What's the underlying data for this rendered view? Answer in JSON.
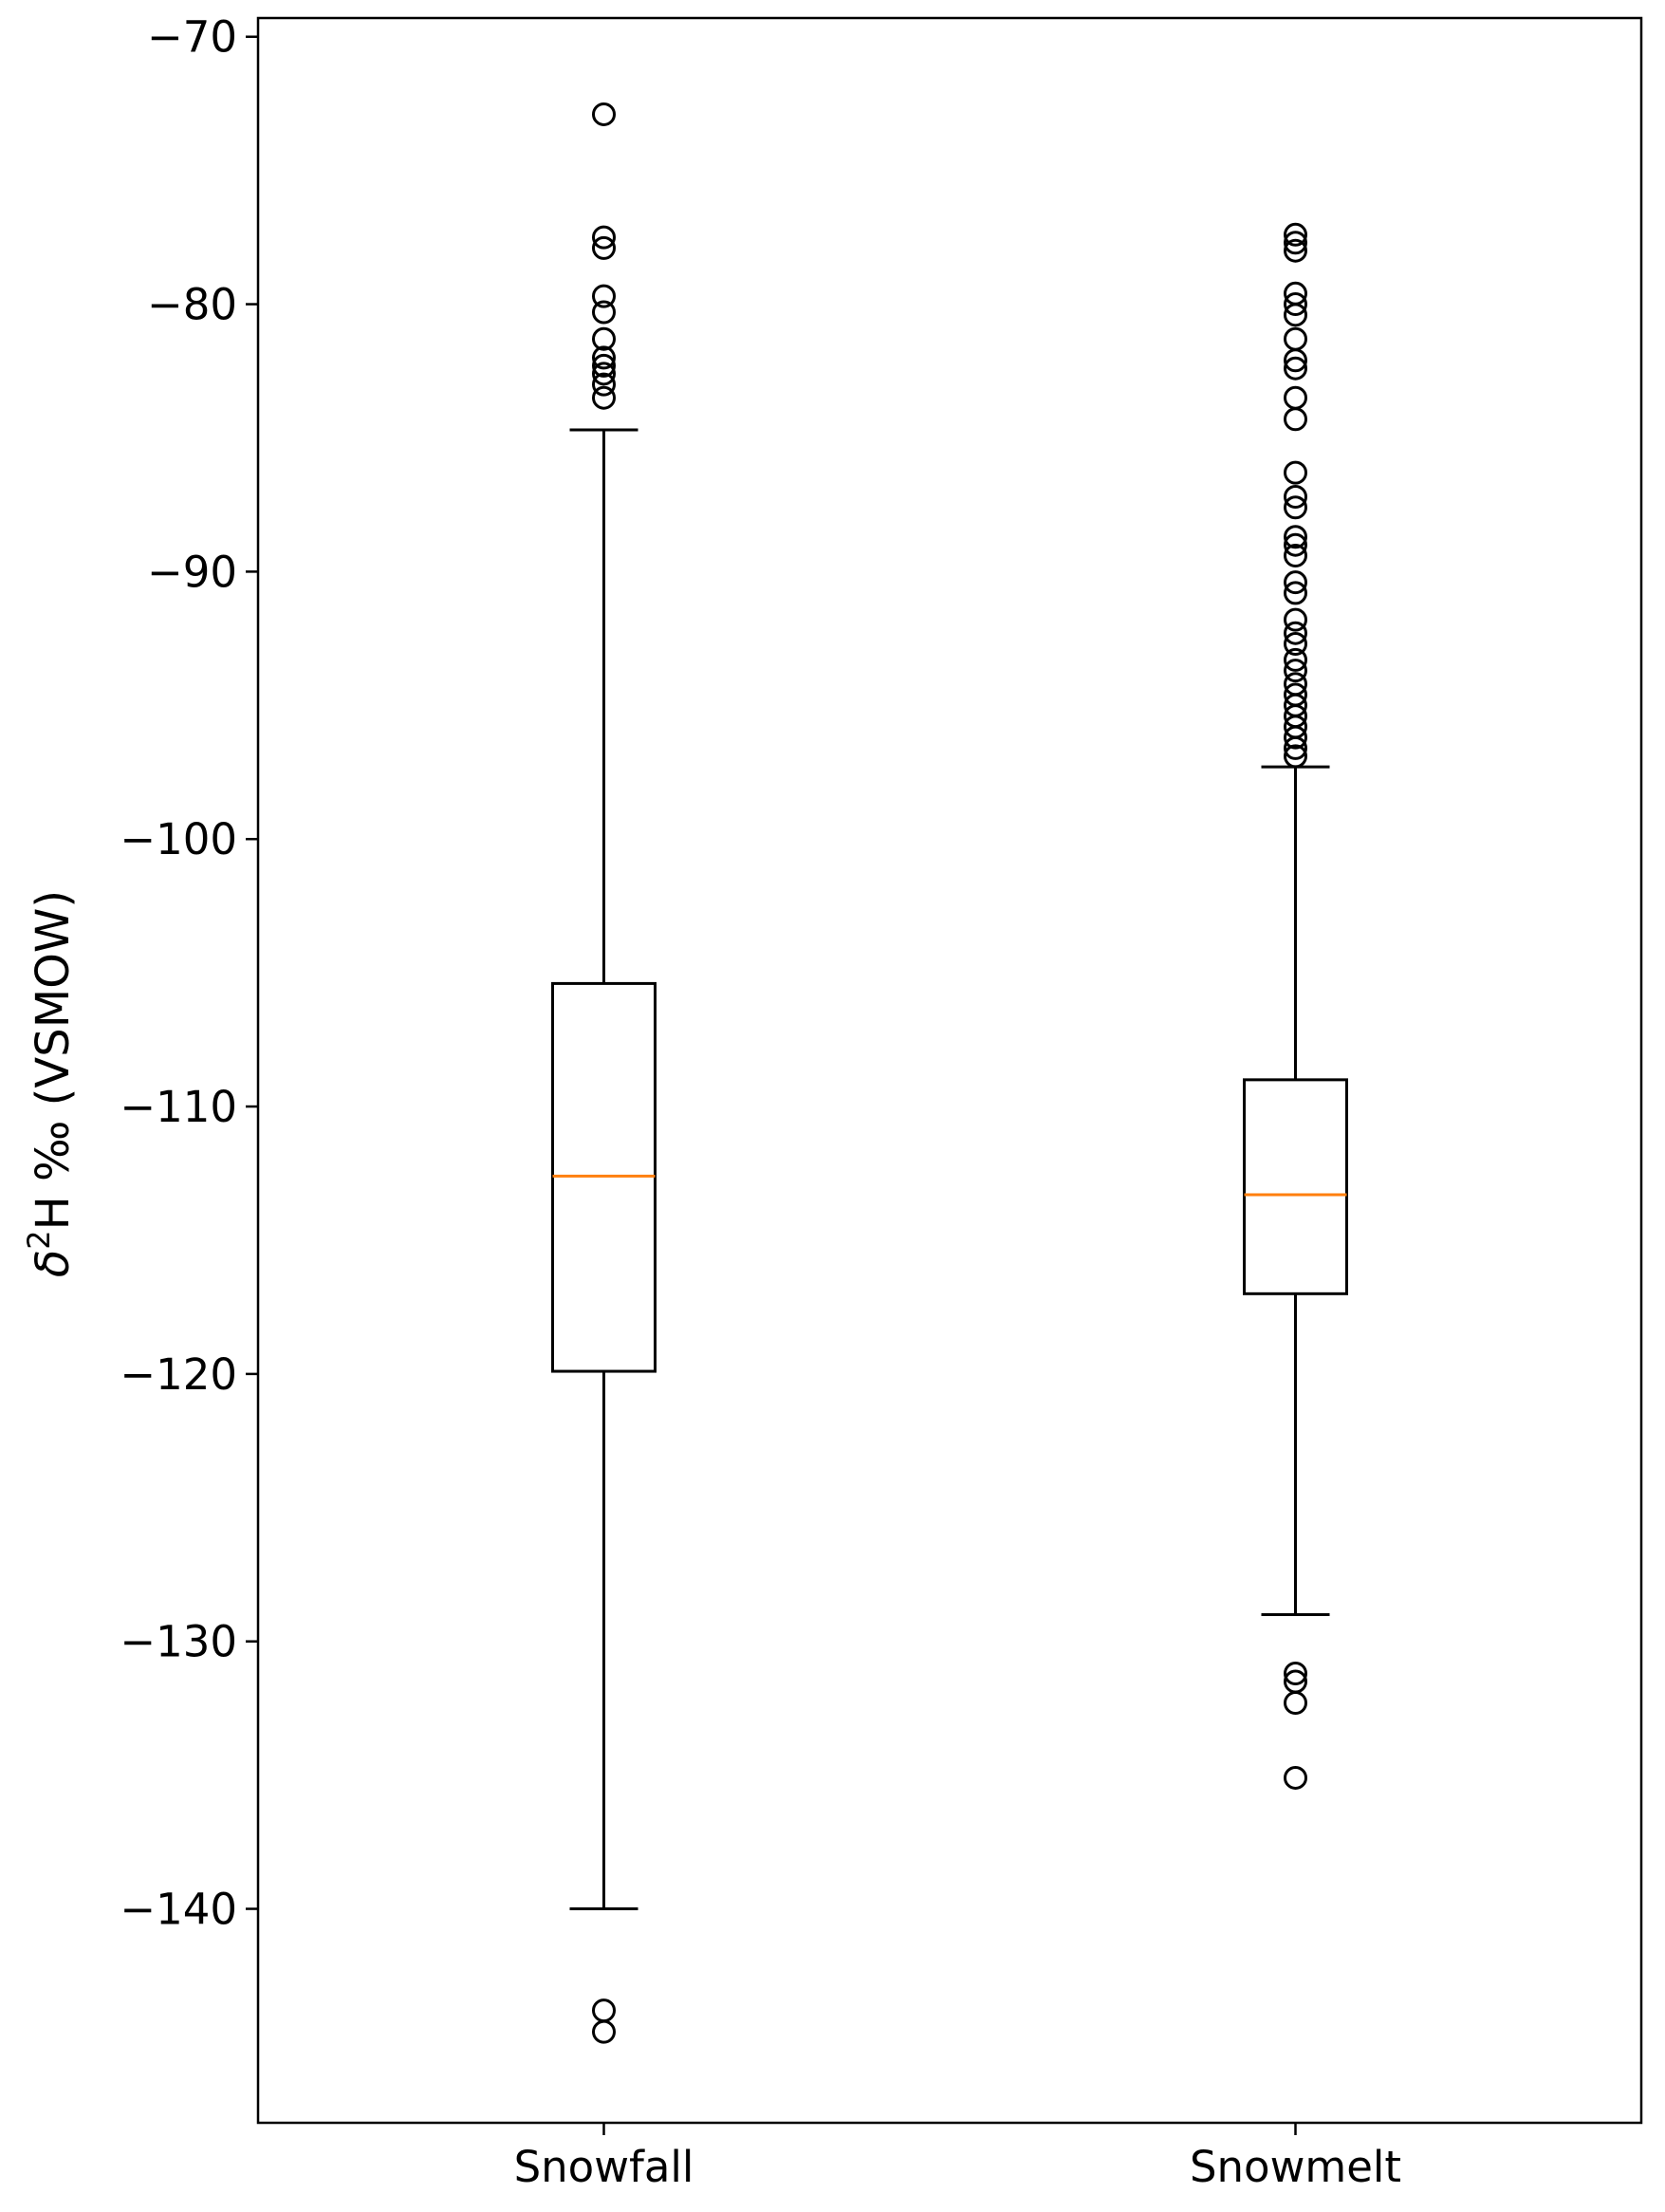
{
  "chart_data": {
    "type": "box",
    "title": "",
    "xlabel": "",
    "ylabel": {
      "delta": "δ",
      "superscript": "2",
      "rest": "H ‰ (VSMOW)"
    },
    "ylim": [
      -148,
      -69.3
    ],
    "yticks": [
      -70,
      -80,
      -90,
      -100,
      -110,
      -120,
      -130,
      -140
    ],
    "ytick_labels": [
      "−70",
      "−80",
      "−90",
      "−100",
      "−110",
      "−120",
      "−130",
      "−140"
    ],
    "grid": false,
    "categories": [
      "Snowfall",
      "Snowmelt"
    ],
    "boxes": [
      {
        "name": "Snowfall",
        "whisker_high": -84.7,
        "q3": -105.4,
        "median": -112.6,
        "q1": -119.9,
        "whisker_low": -140,
        "outliers": [
          -72.9,
          -77.5,
          -77.9,
          -79.7,
          -80.3,
          -81.3,
          -82.0,
          -82.3,
          -82.6,
          -83.0,
          -83.5,
          -143.8,
          -144.6
        ]
      },
      {
        "name": "Snowmelt",
        "whisker_high": -97.3,
        "q3": -109,
        "median": -113.3,
        "q1": -117,
        "whisker_low": -129,
        "outliers": [
          -77.4,
          -77.7,
          -78.0,
          -79.6,
          -80.0,
          -80.4,
          -81.3,
          -82.1,
          -82.4,
          -83.5,
          -84.3,
          -86.3,
          -87.2,
          -87.6,
          -88.7,
          -89.0,
          -89.4,
          -90.4,
          -90.8,
          -91.8,
          -92.3,
          -92.7,
          -93.3,
          -93.7,
          -94.2,
          -94.6,
          -95.0,
          -95.4,
          -95.8,
          -96.2,
          -96.6,
          -96.9,
          -131.2,
          -131.5,
          -132.3,
          -135.1
        ]
      }
    ],
    "colors": {
      "box": "#000000",
      "median": "#ff7f0e",
      "outlier": "#000000",
      "axes": "#000000",
      "background": "#ffffff"
    }
  }
}
